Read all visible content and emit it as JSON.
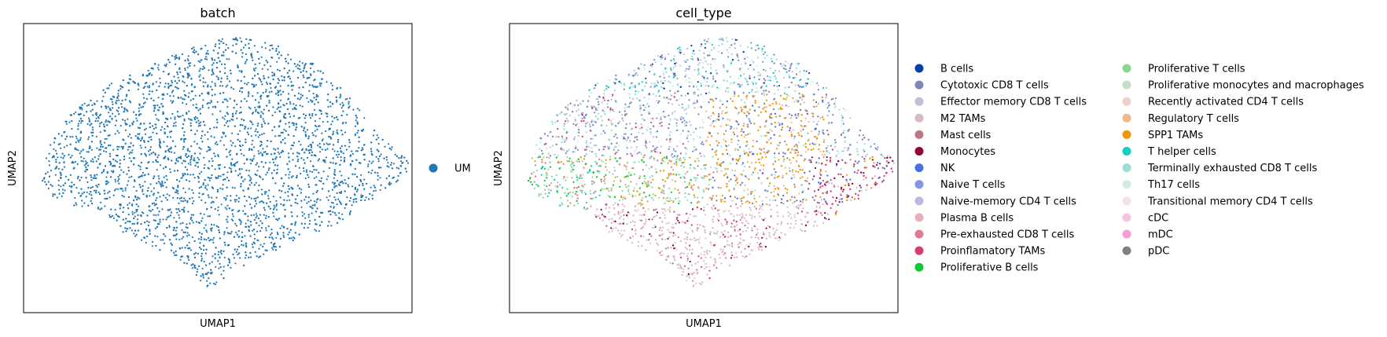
{
  "chart_data": [
    {
      "type": "scatter",
      "title": "batch",
      "xlabel": "UMAP1",
      "ylabel": "UMAP2",
      "xticks": [],
      "yticks": [],
      "grid": false,
      "legend_placement": "right",
      "series": [
        {
          "name": "UM",
          "color": "#1f77b4"
        }
      ]
    },
    {
      "type": "scatter",
      "title": "cell_type",
      "xlabel": "UMAP1",
      "ylabel": "UMAP2",
      "xticks": [],
      "yticks": [],
      "grid": false,
      "legend_placement": "right",
      "series": [
        {
          "name": "B cells",
          "color": "#023fa5"
        },
        {
          "name": "Cytotoxic CD8 T cells",
          "color": "#7d87b9"
        },
        {
          "name": "Effector memory CD8 T cells",
          "color": "#bec1d4"
        },
        {
          "name": "M2 TAMs",
          "color": "#d6bcc0"
        },
        {
          "name": "Mast cells",
          "color": "#bb7784"
        },
        {
          "name": "Monocytes",
          "color": "#8e063b"
        },
        {
          "name": "NK",
          "color": "#4a6fe3"
        },
        {
          "name": "Naive T cells",
          "color": "#8595e1"
        },
        {
          "name": "Naive-memory CD4 T cells",
          "color": "#b5bbe3"
        },
        {
          "name": "Plasma B cells",
          "color": "#e6afb9"
        },
        {
          "name": "Pre-exhausted CD8 T cells",
          "color": "#e07b91"
        },
        {
          "name": "Proinflamatory TAMs",
          "color": "#d33f6a"
        },
        {
          "name": "Proliferative B cells",
          "color": "#11c638"
        },
        {
          "name": "Proliferative T cells",
          "color": "#8dd593"
        },
        {
          "name": "Proliferative monocytes and macrophages",
          "color": "#c6dec7"
        },
        {
          "name": "Recently activated CD4 T cells",
          "color": "#ead3c6"
        },
        {
          "name": "Regulatory T cells",
          "color": "#f0b98d"
        },
        {
          "name": "SPP1 TAMs",
          "color": "#ef9708"
        },
        {
          "name": "T helper cells",
          "color": "#0fcfc0"
        },
        {
          "name": "Terminally exhausted CD8 T cells",
          "color": "#9cded6"
        },
        {
          "name": "Th17 cells",
          "color": "#d5eae7"
        },
        {
          "name": "Transitional memory CD4 T cells",
          "color": "#f3e1eb"
        },
        {
          "name": "cDC",
          "color": "#f6c4e1"
        },
        {
          "name": "mDC",
          "color": "#f79cd4"
        },
        {
          "name": "pDC",
          "color": "#7f7f7f"
        }
      ]
    }
  ]
}
